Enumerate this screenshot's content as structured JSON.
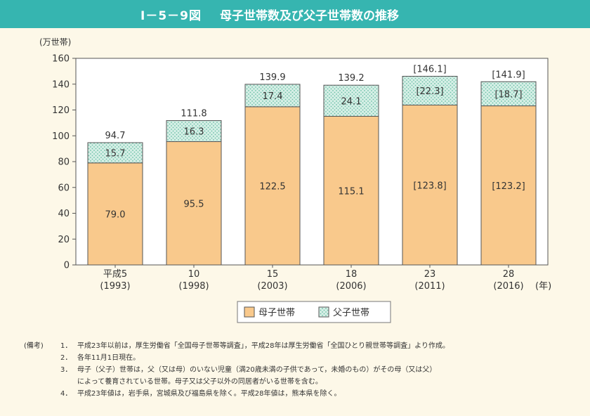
{
  "figure": {
    "number": "I－5－9図",
    "title": "母子世帯数及び父子世帯数の推移"
  },
  "colors": {
    "title_bar": "#36b5b0",
    "boshi": "#f9c98c",
    "fushi": "#d6efe6",
    "fushi_dots": "#6cbfa7",
    "background": "#fdf8e8"
  },
  "chart_data": {
    "type": "bar",
    "stacked": true,
    "ylabel": "(万世帯)",
    "ylim": [
      0,
      160
    ],
    "yticks": [
      0,
      20,
      40,
      60,
      80,
      100,
      120,
      140,
      160
    ],
    "x_unit": "(年)",
    "categories": [
      [
        "平成5",
        "(1993)"
      ],
      [
        "10",
        "(1998)"
      ],
      [
        "15",
        "(2003)"
      ],
      [
        "18",
        "(2006)"
      ],
      [
        "23",
        "(2011)"
      ],
      [
        "28",
        "(2016)"
      ]
    ],
    "series": [
      {
        "name": "母子世帯",
        "values": [
          79.0,
          95.5,
          122.5,
          115.1,
          123.8,
          123.2
        ],
        "labels": [
          "79.0",
          "95.5",
          "122.5",
          "115.1",
          "[123.8]",
          "[123.2]"
        ]
      },
      {
        "name": "父子世帯",
        "values": [
          15.7,
          16.3,
          17.4,
          24.1,
          22.3,
          18.7
        ],
        "labels": [
          "15.7",
          "16.3",
          "17.4",
          "24.1",
          "[22.3]",
          "[18.7]"
        ]
      }
    ],
    "totals": [
      "94.7",
      "111.8",
      "139.9",
      "139.2",
      "[146.1]",
      "[141.9]"
    ],
    "legend_position": "bottom"
  },
  "notes": {
    "prefix": "(備考)",
    "items": [
      {
        "num": "1．",
        "text": "平成23年以前は，厚生労働省「全国母子世帯等調査」，平成28年は厚生労働省「全国ひとり親世帯等調査」より作成。"
      },
      {
        "num": "2．",
        "text": "各年11月1日現在。"
      },
      {
        "num": "3．",
        "text": "母子（父子）世帯は，父（又は母）のいない児童（満20歳未満の子供であって，未婚のもの）がその母（又は父）"
      },
      {
        "num": "",
        "text": "によって養育されている世帯。母子又は父子以外の同居者がいる世帯を含む。"
      },
      {
        "num": "4．",
        "text": "平成23年値は，岩手県，宮城県及び福島県を除く。平成28年値は，熊本県を除く。"
      }
    ]
  }
}
